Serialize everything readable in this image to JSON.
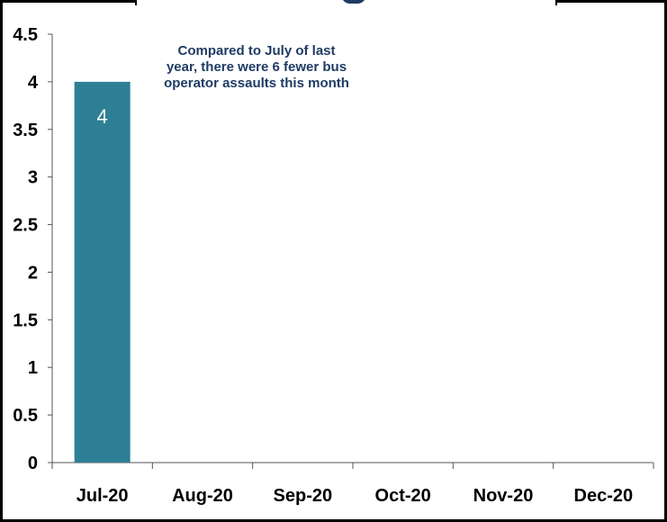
{
  "chart_data": {
    "type": "bar",
    "categories": [
      "Jul-20",
      "Aug-20",
      "Sep-20",
      "Oct-20",
      "Nov-20",
      "Dec-20"
    ],
    "values": [
      4,
      null,
      null,
      null,
      null,
      null
    ],
    "data_labels": [
      "4",
      "",
      "",
      "",
      "",
      ""
    ],
    "ylim": [
      0,
      4.5
    ],
    "yticks": [
      "0",
      "0.5",
      "1",
      "1.5",
      "2",
      "2.5",
      "3",
      "3.5",
      "4",
      "4.5"
    ],
    "ytick_values": [
      0,
      0.5,
      1,
      1.5,
      2,
      2.5,
      3,
      3.5,
      4,
      4.5
    ],
    "grid": false,
    "bar_color": "#2e7f95",
    "annotation": "Compared to July of last year, there were 6 fewer bus operator assaults this month"
  }
}
